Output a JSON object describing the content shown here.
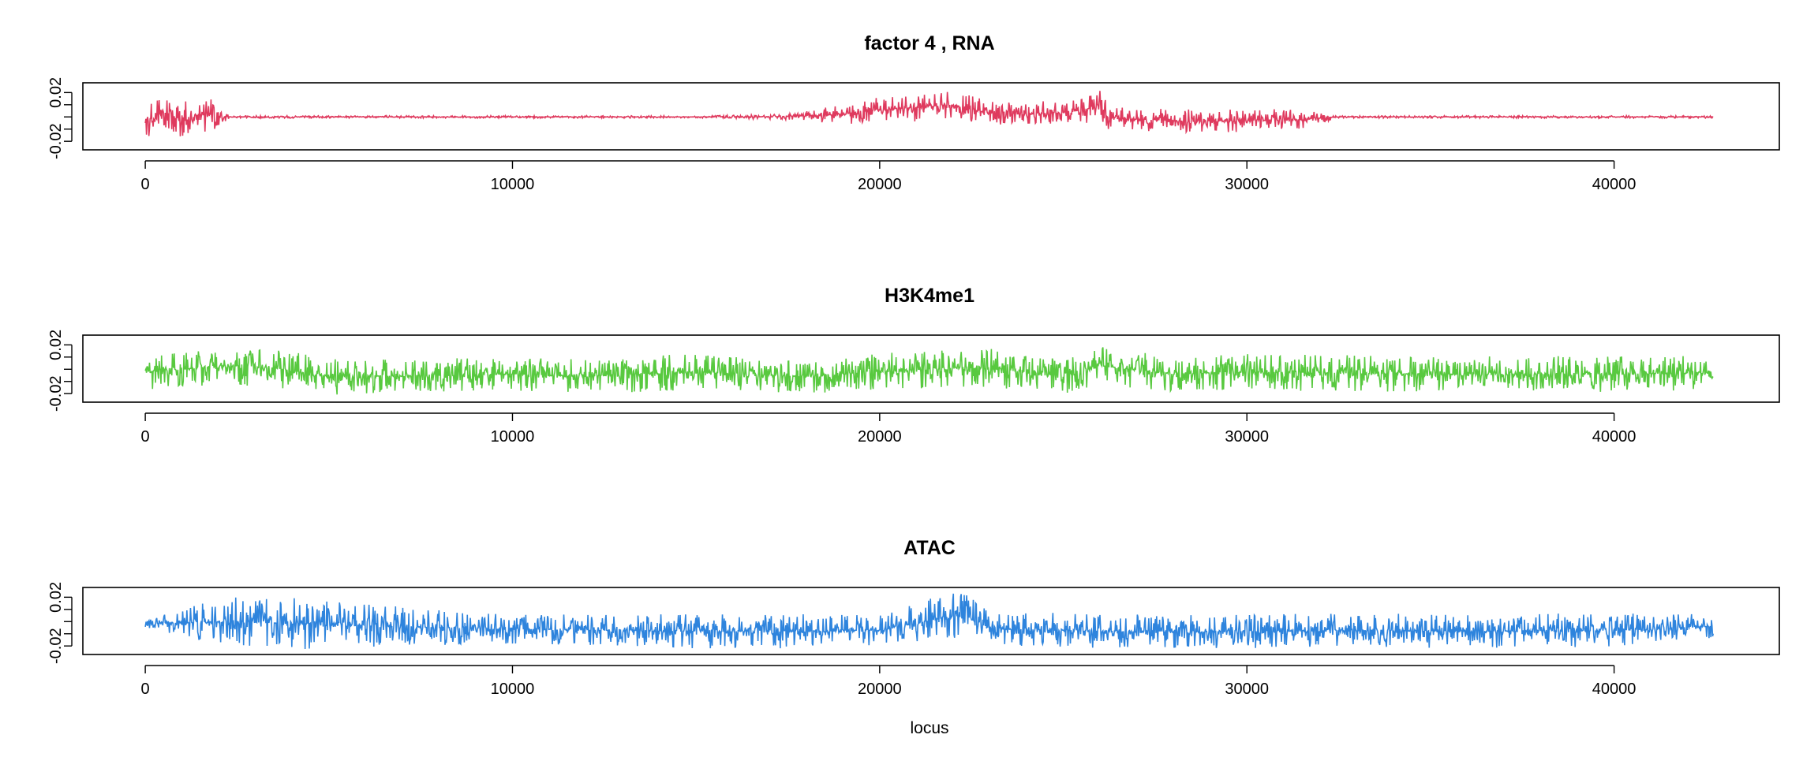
{
  "chart_data": [
    {
      "type": "line",
      "title": "factor  4 , RNA",
      "xlabel": "",
      "ylabel": "",
      "xlim": [
        -1700,
        44500
      ],
      "ylim": [
        -0.027,
        0.028
      ],
      "xticks": [
        "0",
        "10000",
        "20000",
        "30000",
        "40000"
      ],
      "xtick_values": [
        0,
        10000,
        20000,
        30000,
        40000
      ],
      "yticks": [
        "-0.02",
        "0.02"
      ],
      "ytick_values": [
        -0.02,
        0.02
      ],
      "grid": false,
      "color": "#DF3A5E",
      "series": [
        {
          "x": [
            0,
            500,
            1000,
            1500,
            1900,
            2300,
            5000,
            10000,
            15000,
            17000,
            18000,
            19000,
            20000,
            21000,
            22000,
            22800,
            24000,
            25500,
            26000,
            26200,
            27000,
            28500,
            30000,
            31500,
            32500,
            35000,
            37000,
            40000,
            42700
          ],
          "y": [
            -0.005,
            0.002,
            -0.002,
            0.003,
            0.001,
            0.0,
            0.0,
            0.0,
            0.0,
            0.0,
            0.001,
            0.002,
            0.006,
            0.008,
            0.01,
            0.004,
            0.002,
            0.005,
            0.01,
            0.0,
            -0.002,
            -0.004,
            -0.003,
            -0.002,
            0.0,
            0.0,
            0.0,
            0.0,
            0.0
          ],
          "amplitude": [
            0.012,
            0.017,
            0.014,
            0.016,
            0.012,
            0.001,
            0.001,
            0.001,
            0.001,
            0.002,
            0.004,
            0.009,
            0.01,
            0.012,
            0.012,
            0.011,
            0.01,
            0.01,
            0.015,
            0.01,
            0.009,
            0.01,
            0.01,
            0.008,
            0.001,
            0.001,
            0.001,
            0.001,
            0.001
          ]
        }
      ]
    },
    {
      "type": "line",
      "title": "H3K4me1",
      "xlabel": "",
      "ylabel": "",
      "xlim": [
        -1700,
        44500
      ],
      "ylim": [
        -0.027,
        0.028
      ],
      "xticks": [
        "0",
        "10000",
        "20000",
        "30000",
        "40000"
      ],
      "xtick_values": [
        0,
        10000,
        20000,
        30000,
        40000
      ],
      "yticks": [
        "-0.02",
        "0.02"
      ],
      "ytick_values": [
        -0.02,
        0.02
      ],
      "grid": false,
      "color": "#58C93F",
      "series": [
        {
          "x": [
            0,
            2000,
            3500,
            5000,
            8000,
            10000,
            12000,
            15000,
            18000,
            20000,
            22000,
            23000,
            25000,
            26000,
            28000,
            30000,
            32000,
            35000,
            38000,
            40000,
            42700
          ],
          "y": [
            -0.003,
            0.003,
            0.001,
            -0.006,
            -0.005,
            -0.004,
            -0.006,
            -0.002,
            -0.006,
            -0.002,
            0.001,
            0.001,
            -0.006,
            0.003,
            -0.004,
            -0.002,
            -0.003,
            -0.004,
            -0.004,
            -0.004,
            -0.003
          ],
          "amplitude": [
            0.014,
            0.016,
            0.016,
            0.015,
            0.014,
            0.014,
            0.014,
            0.015,
            0.014,
            0.015,
            0.016,
            0.016,
            0.014,
            0.016,
            0.014,
            0.015,
            0.015,
            0.015,
            0.015,
            0.015,
            0.014
          ]
        }
      ]
    },
    {
      "type": "line",
      "title": "ATAC",
      "xlabel": "locus",
      "ylabel": "",
      "xlim": [
        -1700,
        44500
      ],
      "ylim": [
        -0.027,
        0.028
      ],
      "xticks": [
        "0",
        "10000",
        "20000",
        "30000",
        "40000"
      ],
      "xtick_values": [
        0,
        10000,
        20000,
        30000,
        40000
      ],
      "yticks": [
        "-0.02",
        "0.02"
      ],
      "ytick_values": [
        -0.02,
        0.02
      ],
      "grid": false,
      "color": "#2E84DD",
      "series": [
        {
          "x": [
            0,
            2200,
            4400,
            7000,
            10000,
            15000,
            18000,
            20000,
            21500,
            22200,
            23000,
            25000,
            27000,
            30000,
            33000,
            36000,
            40000,
            42700
          ],
          "y": [
            -0.002,
            0.0,
            -0.002,
            -0.004,
            -0.006,
            -0.008,
            -0.008,
            -0.007,
            0.002,
            0.006,
            -0.006,
            -0.007,
            -0.008,
            -0.008,
            -0.007,
            -0.008,
            -0.007,
            -0.004
          ],
          "amplitude": [
            0.004,
            0.02,
            0.022,
            0.016,
            0.012,
            0.014,
            0.014,
            0.012,
            0.018,
            0.02,
            0.014,
            0.014,
            0.014,
            0.014,
            0.014,
            0.014,
            0.014,
            0.01
          ]
        }
      ]
    }
  ]
}
